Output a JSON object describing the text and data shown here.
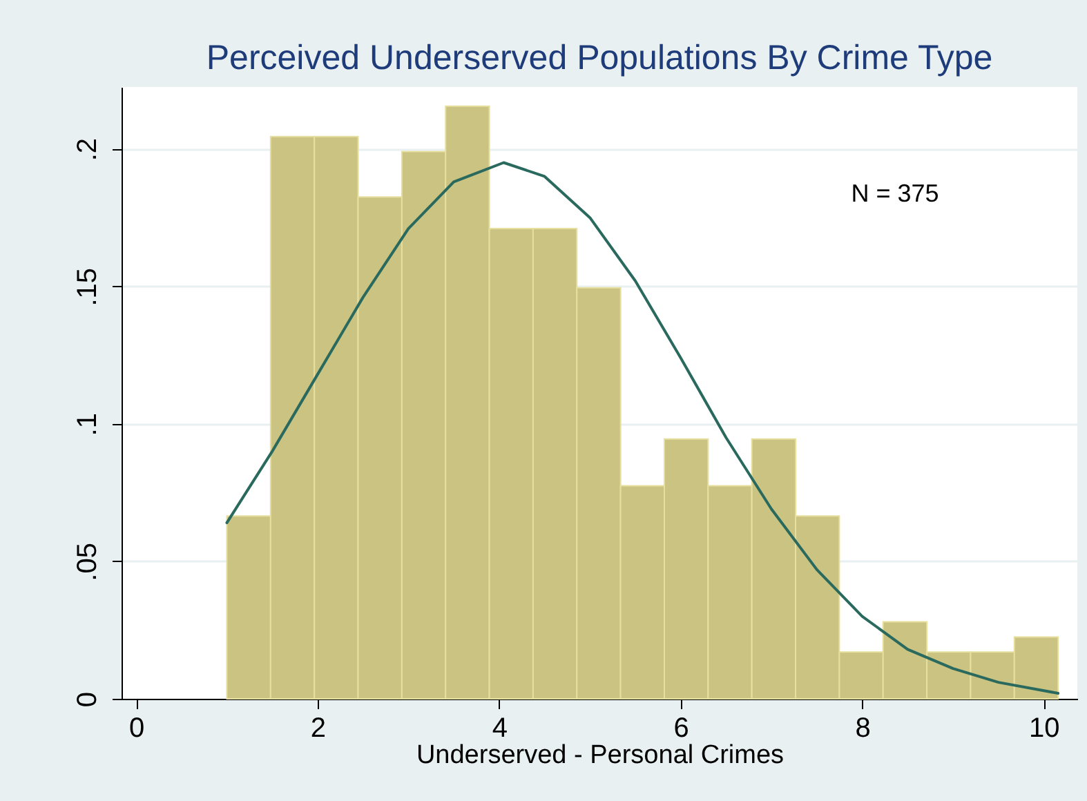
{
  "chart_data": {
    "type": "histogram",
    "title": "Perceived Underserved Populations By Crime Type",
    "xlabel": "Underserved - Personal Crimes",
    "bins": [
      1,
      1.482,
      1.964,
      2.446,
      2.928,
      3.41,
      3.892,
      4.374,
      4.856,
      5.338,
      5.82,
      6.302,
      6.784,
      7.266,
      7.748,
      8.23,
      8.712,
      9.194,
      9.676,
      10.158
    ],
    "series": [
      {
        "color": "#cbc382",
        "values": [
          0.0665,
          0.2045,
          0.2045,
          0.1825,
          0.199,
          0.2155,
          0.171,
          0.171,
          0.1495,
          0.0775,
          0.0945,
          0.0775,
          0.0945,
          0.0665,
          0.017,
          0.028,
          0.017,
          0.017,
          0.0225
        ]
      },
      {
        "type": "line",
        "color": "#2a6a5e",
        "x": [
          1,
          1.5,
          2,
          2.5,
          3,
          3.5,
          4.05,
          4.5,
          5,
          5.5,
          6,
          6.5,
          7,
          7.5,
          8,
          8.5,
          9,
          9.5,
          10.158
        ],
        "values": [
          0.064,
          0.09,
          0.118,
          0.146,
          0.171,
          0.188,
          0.195,
          0.19,
          0.175,
          0.152,
          0.124,
          0.095,
          0.069,
          0.047,
          0.03,
          0.018,
          0.011,
          0.006,
          0.002
        ]
      }
    ],
    "annotations": [
      "N = 375"
    ],
    "xlim": [
      -0.16,
      10.37
    ],
    "xticks": [
      0,
      2,
      4,
      6,
      8,
      10
    ],
    "ylim": [
      0,
      0.2225
    ],
    "yticks": [
      0,
      {
        "value": 0.05,
        "label": ".05"
      },
      {
        "value": 0.1,
        "label": ".1"
      },
      {
        "value": 0.15,
        "label": ".15"
      },
      {
        "value": 0.2,
        "label": ".2"
      }
    ],
    "grid": "y"
  }
}
